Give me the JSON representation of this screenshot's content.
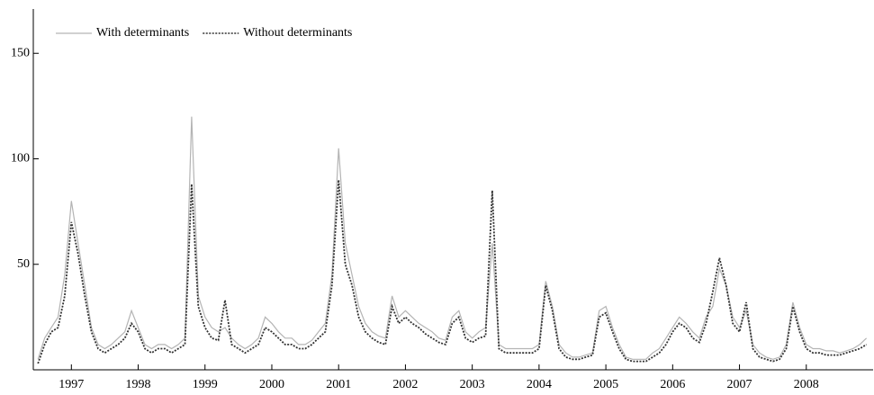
{
  "chart_data": {
    "type": "line",
    "legend": "top-left",
    "x": [
      1996.5,
      1996.6,
      1996.7,
      1996.8,
      1996.9,
      1997.0,
      1997.1,
      1997.2,
      1997.3,
      1997.4,
      1997.5,
      1997.6,
      1997.7,
      1997.8,
      1997.9,
      1998.0,
      1998.1,
      1998.2,
      1998.3,
      1998.4,
      1998.5,
      1998.6,
      1998.7,
      1998.8,
      1998.9,
      1999.0,
      1999.1,
      1999.2,
      1999.3,
      1999.4,
      1999.5,
      1999.6,
      1999.7,
      1999.8,
      1999.9,
      2000.0,
      2000.1,
      2000.2,
      2000.3,
      2000.4,
      2000.5,
      2000.6,
      2000.7,
      2000.8,
      2000.9,
      2001.0,
      2001.1,
      2001.2,
      2001.3,
      2001.4,
      2001.5,
      2001.6,
      2001.7,
      2001.8,
      2001.9,
      2002.0,
      2002.1,
      2002.2,
      2002.3,
      2002.4,
      2002.5,
      2002.6,
      2002.7,
      2002.8,
      2002.9,
      2003.0,
      2003.1,
      2003.2,
      2003.3,
      2003.4,
      2003.5,
      2003.6,
      2003.7,
      2003.8,
      2003.9,
      2004.0,
      2004.1,
      2004.2,
      2004.3,
      2004.4,
      2004.5,
      2004.6,
      2004.7,
      2004.8,
      2004.9,
      2005.0,
      2005.1,
      2005.2,
      2005.3,
      2005.4,
      2005.5,
      2005.6,
      2005.7,
      2005.8,
      2005.9,
      2006.0,
      2006.1,
      2006.2,
      2006.3,
      2006.4,
      2006.5,
      2006.6,
      2006.7,
      2006.8,
      2006.9,
      2007.0,
      2007.1,
      2007.2,
      2007.3,
      2007.4,
      2007.5,
      2007.6,
      2007.7,
      2007.8,
      2007.9,
      2008.0,
      2008.1,
      2008.2,
      2008.3,
      2008.4,
      2008.5,
      2008.6,
      2008.7,
      2008.8,
      2008.9
    ],
    "series": [
      {
        "name": "With determinants",
        "color": "#b4b4b4",
        "dash": false,
        "values": [
          5,
          15,
          20,
          25,
          45,
          80,
          60,
          40,
          20,
          12,
          10,
          12,
          15,
          18,
          28,
          20,
          12,
          10,
          12,
          12,
          10,
          12,
          15,
          120,
          35,
          25,
          20,
          18,
          20,
          15,
          12,
          10,
          12,
          15,
          25,
          22,
          18,
          15,
          15,
          12,
          12,
          14,
          18,
          22,
          45,
          105,
          60,
          45,
          30,
          22,
          18,
          16,
          15,
          35,
          25,
          28,
          25,
          22,
          20,
          18,
          15,
          14,
          25,
          28,
          18,
          15,
          18,
          20,
          60,
          12,
          10,
          10,
          10,
          10,
          10,
          12,
          42,
          30,
          12,
          8,
          6,
          6,
          7,
          8,
          28,
          30,
          20,
          12,
          6,
          5,
          5,
          5,
          8,
          10,
          15,
          20,
          25,
          22,
          18,
          15,
          25,
          30,
          48,
          40,
          25,
          20,
          28,
          12,
          8,
          6,
          5,
          6,
          12,
          32,
          20,
          12,
          10,
          10,
          9,
          9,
          8,
          9,
          10,
          12,
          15
        ]
      },
      {
        "name": "Without determinants",
        "color": "#333333",
        "dash": true,
        "values": [
          3,
          12,
          18,
          20,
          35,
          70,
          55,
          35,
          18,
          10,
          8,
          10,
          12,
          15,
          22,
          18,
          10,
          8,
          10,
          10,
          8,
          10,
          12,
          88,
          30,
          20,
          15,
          14,
          33,
          12,
          10,
          8,
          10,
          12,
          20,
          18,
          15,
          12,
          12,
          10,
          10,
          12,
          15,
          18,
          40,
          90,
          50,
          40,
          25,
          18,
          15,
          13,
          12,
          30,
          22,
          25,
          22,
          20,
          17,
          15,
          13,
          12,
          22,
          25,
          15,
          13,
          15,
          16,
          85,
          10,
          8,
          8,
          8,
          8,
          8,
          10,
          40,
          28,
          10,
          6,
          5,
          5,
          6,
          7,
          25,
          27,
          18,
          10,
          5,
          4,
          4,
          4,
          6,
          8,
          12,
          18,
          22,
          20,
          15,
          13,
          22,
          37,
          53,
          40,
          22,
          18,
          32,
          10,
          6,
          5,
          4,
          5,
          10,
          30,
          18,
          10,
          8,
          8,
          7,
          7,
          7,
          8,
          9,
          10,
          12
        ]
      }
    ],
    "xlim": [
      1996.43,
      2009.0
    ],
    "xticks": [
      1997,
      1998,
      1999,
      2000,
      2001,
      2002,
      2003,
      2004,
      2005,
      2006,
      2007,
      2008
    ],
    "ylim": [
      0,
      171
    ],
    "yticks": [
      50,
      100,
      150
    ]
  }
}
